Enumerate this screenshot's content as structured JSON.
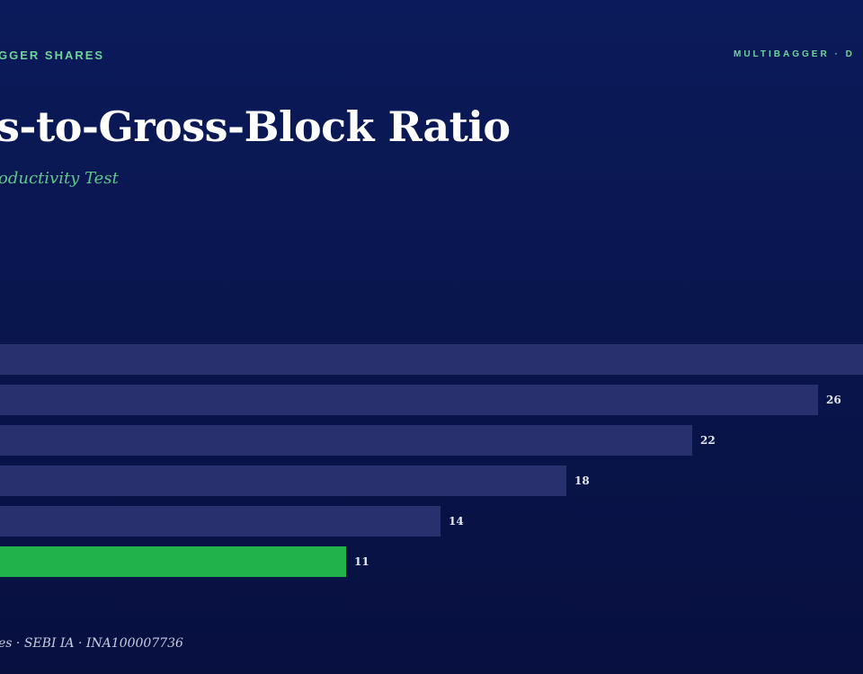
{
  "header": {
    "left_label": "GGER SHARES",
    "right_label": "MULTIBAGGER · D"
  },
  "title": "s-to-Gross-Block Ratio",
  "subtitle": "oductivity Test",
  "footer": "es · SEBI IA · INA100007736",
  "colors": {
    "background": "#0a1650",
    "bar": "#28306e",
    "highlight_bar": "#22b24c",
    "accent": "#6fd49a"
  },
  "chart_data": {
    "type": "bar",
    "orientation": "horizontal",
    "values": [
      30,
      26,
      22,
      18,
      14,
      11
    ],
    "data_labels": [
      "",
      "26",
      "22",
      "18",
      "14",
      "11"
    ],
    "highlight_index": 5,
    "grid": false,
    "legend": "none"
  }
}
